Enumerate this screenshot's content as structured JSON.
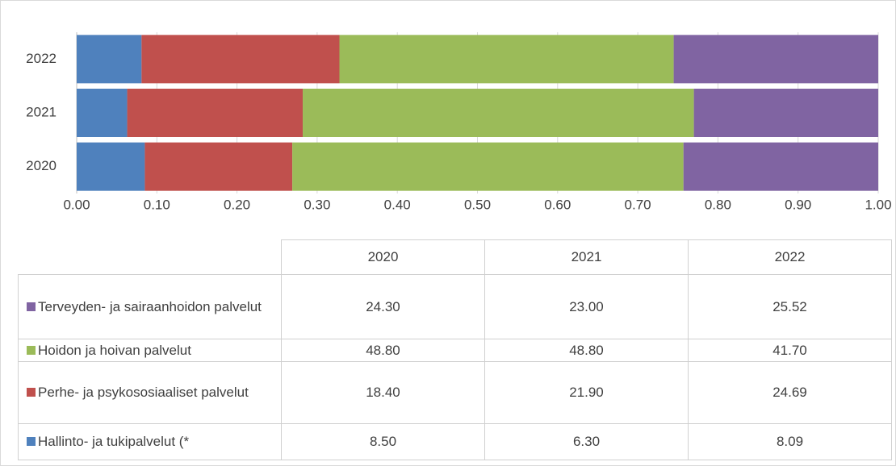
{
  "chart_data": {
    "type": "percent_stacked_bar",
    "orientation": "horizontal",
    "categories": [
      "2020",
      "2021",
      "2022"
    ],
    "series": [
      {
        "name": "Hallinto- ja tukipalvelut (*",
        "color": "#4f81bd",
        "values": [
          8.5,
          6.3,
          8.09
        ],
        "value_labels": [
          "8.50",
          "6.30",
          "8.09"
        ]
      },
      {
        "name": "Perhe- ja psykososiaaliset palvelut",
        "color": "#c0504d",
        "values": [
          18.4,
          21.9,
          24.69
        ],
        "value_labels": [
          "18.40",
          "21.90",
          "24.69"
        ]
      },
      {
        "name": "Hoidon ja hoivan palvelut",
        "color": "#9bbb59",
        "values": [
          48.8,
          48.8,
          41.7
        ],
        "value_labels": [
          "48.80",
          "48.80",
          "41.70"
        ]
      },
      {
        "name": "Terveyden- ja sairaanhoidon palvelut",
        "color": "#8064a2",
        "values": [
          24.3,
          23.0,
          25.52
        ],
        "value_labels": [
          "24.30",
          "23.00",
          "25.52"
        ]
      }
    ],
    "xlim": [
      0,
      100
    ],
    "xticks": [
      {
        "value": 0,
        "label": "0.00"
      },
      {
        "value": 10,
        "label": "0.10"
      },
      {
        "value": 20,
        "label": "0.20"
      },
      {
        "value": 30,
        "label": "0.30"
      },
      {
        "value": 40,
        "label": "0.40"
      },
      {
        "value": 50,
        "label": "0.50"
      },
      {
        "value": 60,
        "label": "0.60"
      },
      {
        "value": 70,
        "label": "0.70"
      },
      {
        "value": 80,
        "label": "0.80"
      },
      {
        "value": 90,
        "label": "0.90"
      },
      {
        "value": 100,
        "label": "1.00"
      }
    ],
    "grid": true,
    "data_table": true
  }
}
